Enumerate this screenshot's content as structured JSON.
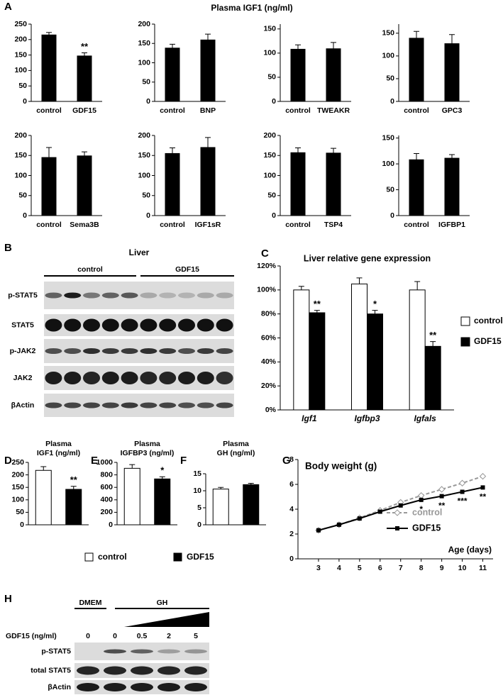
{
  "panel_labels": [
    "A",
    "B",
    "C",
    "D",
    "E",
    "F",
    "G",
    "H"
  ],
  "panel_a_title": "Plasma IGF1 (ng/ml)",
  "chart_data": [
    {
      "type": "bar",
      "categories": [
        "control",
        "GDF15"
      ],
      "values": [
        215,
        147
      ],
      "errors": [
        8,
        10
      ],
      "significance": [
        null,
        "**"
      ],
      "color": "#000000",
      "ylim": [
        0,
        250
      ],
      "yticks": [
        0,
        50,
        100,
        150,
        200,
        250
      ]
    },
    {
      "type": "bar",
      "categories": [
        "control",
        "BNP"
      ],
      "values": [
        138,
        159
      ],
      "errors": [
        10,
        15
      ],
      "color": "#000000",
      "ylim": [
        0,
        200
      ],
      "yticks": [
        0,
        50,
        100,
        150,
        200
      ]
    },
    {
      "type": "bar",
      "categories": [
        "control",
        "TWEAKR"
      ],
      "values": [
        108,
        109
      ],
      "errors": [
        9,
        13
      ],
      "color": "#000000",
      "ylim": [
        0,
        160
      ],
      "yticks": [
        0,
        50,
        100,
        150
      ]
    },
    {
      "type": "bar",
      "categories": [
        "control",
        "GPC3"
      ],
      "values": [
        139,
        127
      ],
      "errors": [
        15,
        20
      ],
      "color": "#000000",
      "ylim": [
        0,
        170
      ],
      "yticks": [
        0,
        50,
        100,
        150
      ]
    },
    {
      "type": "bar",
      "categories": [
        "control",
        "Sema3B"
      ],
      "values": [
        145,
        149
      ],
      "errors": [
        25,
        10
      ],
      "color": "#000000",
      "ylim": [
        0,
        200
      ],
      "yticks": [
        0,
        50,
        100,
        150,
        200
      ]
    },
    {
      "type": "bar",
      "categories": [
        "control",
        "IGF1sR"
      ],
      "values": [
        155,
        170
      ],
      "errors": [
        14,
        25
      ],
      "color": "#000000",
      "ylim": [
        0,
        200
      ],
      "yticks": [
        0,
        50,
        100,
        150,
        200
      ]
    },
    {
      "type": "bar",
      "categories": [
        "control",
        "TSP4"
      ],
      "values": [
        157,
        156
      ],
      "errors": [
        12,
        12
      ],
      "color": "#000000",
      "ylim": [
        0,
        200
      ],
      "yticks": [
        0,
        50,
        100,
        150,
        200
      ]
    },
    {
      "type": "bar",
      "categories": [
        "control",
        "IGFBP1"
      ],
      "values": [
        108,
        111
      ],
      "errors": [
        12,
        7
      ],
      "color": "#000000",
      "ylim": [
        0,
        155
      ],
      "yticks": [
        0,
        50,
        100,
        150
      ]
    },
    {
      "type": "bar",
      "title": "Liver relative gene expression",
      "categories": [
        "Igf1",
        "Igfbp3",
        "Igfals"
      ],
      "series": [
        {
          "name": "control",
          "color": "#ffffff",
          "values": [
            100,
            105,
            100
          ],
          "errors": [
            3,
            5,
            7
          ]
        },
        {
          "name": "GDF15",
          "color": "#000000",
          "values": [
            81,
            80,
            53
          ],
          "errors": [
            2,
            3,
            4
          ],
          "significance": [
            "**",
            "*",
            "**"
          ]
        }
      ],
      "ylim": [
        0,
        120
      ],
      "yticks": [
        {
          "value": 0,
          "label": "0%"
        },
        {
          "value": 20,
          "label": "20%"
        },
        {
          "value": 40,
          "label": "40%"
        },
        {
          "value": 60,
          "label": "60%"
        },
        {
          "value": 80,
          "label": "80%"
        },
        {
          "value": 100,
          "label": "100%"
        },
        {
          "value": 120,
          "label": "120%"
        }
      ],
      "legend": "right"
    },
    {
      "type": "bar",
      "title": [
        "Plasma",
        "IGF1 (ng/ml)"
      ],
      "values": [
        218,
        142
      ],
      "errors": [
        15,
        12
      ],
      "significance": [
        null,
        "**"
      ],
      "colors": [
        "#ffffff",
        "#000000"
      ],
      "ylim": [
        0,
        250
      ],
      "yticks": [
        0,
        50,
        100,
        150,
        200,
        250
      ]
    },
    {
      "type": "bar",
      "title": [
        "Plasma",
        "IGFBP3 (ng/ml)"
      ],
      "values": [
        905,
        735
      ],
      "errors": [
        60,
        35
      ],
      "significance": [
        null,
        "*"
      ],
      "colors": [
        "#ffffff",
        "#000000"
      ],
      "ylim": [
        0,
        1000
      ],
      "yticks": [
        0,
        200,
        400,
        600,
        800,
        1000
      ]
    },
    {
      "type": "bar",
      "title": [
        "Plasma",
        "GH (ng/ml)"
      ],
      "values": [
        10.5,
        11.8
      ],
      "errors": [
        0.5,
        0.4
      ],
      "colors": [
        "#ffffff",
        "#000000"
      ],
      "ylim": [
        0,
        15
      ],
      "yticks": [
        0,
        5,
        10,
        15
      ]
    },
    {
      "type": "line",
      "title": "Body weight (g)",
      "xlabel": "Age (days)",
      "x": [
        3,
        4,
        5,
        6,
        7,
        8,
        9,
        10,
        11
      ],
      "series": [
        {
          "name": "control",
          "color": "#999999",
          "values": [
            2.3,
            2.75,
            3.3,
            3.9,
            4.55,
            5.1,
            5.6,
            6.1,
            6.65
          ]
        },
        {
          "name": "GDF15",
          "color": "#000000",
          "values": [
            2.3,
            2.75,
            3.25,
            3.8,
            4.3,
            4.75,
            5.05,
            5.4,
            5.75
          ],
          "significance": [
            null,
            null,
            null,
            null,
            null,
            "*",
            "**",
            "***",
            "**"
          ]
        }
      ],
      "xlim": [
        2,
        11.5
      ],
      "xticks": [
        3,
        4,
        5,
        6,
        7,
        8,
        9,
        10,
        11
      ],
      "ylim": [
        0,
        8
      ],
      "yticks": [
        0,
        2,
        4,
        6,
        8
      ],
      "legend": "lower right"
    }
  ],
  "shared_legend": [
    {
      "name": "control",
      "color": "#ffffff"
    },
    {
      "name": "GDF15",
      "color": "#000000"
    }
  ],
  "blot_b": {
    "title": "Liver",
    "groups": [
      "control",
      "GDF15"
    ],
    "rows": [
      "p-STAT5",
      "STAT5",
      "p-JAK2",
      "JAK2",
      "βActin"
    ]
  },
  "blot_h": {
    "groups": [
      "DMEM",
      "GH"
    ],
    "dose_label": "GDF15 (ng/ml)",
    "doses": [
      0,
      0,
      0.5,
      2,
      5
    ],
    "rows": [
      "p-STAT5",
      "total STAT5",
      "βActin"
    ]
  }
}
